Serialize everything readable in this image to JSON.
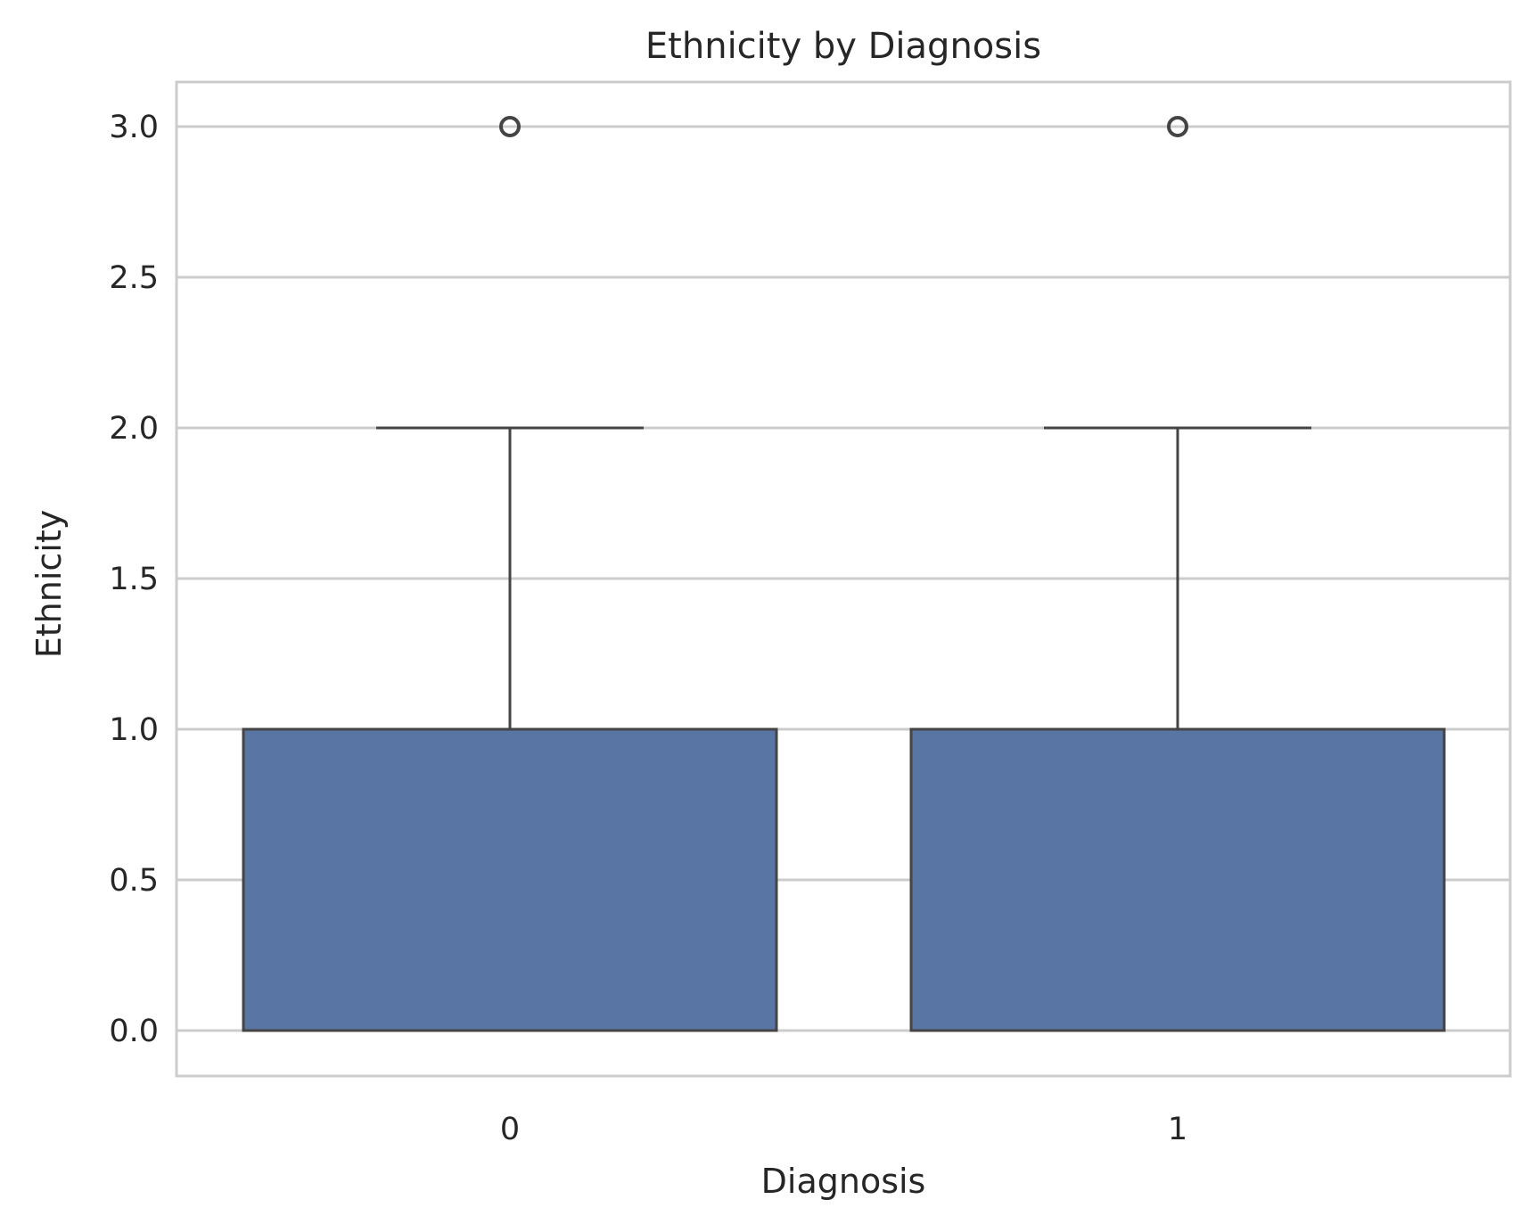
{
  "chart_data": {
    "type": "box",
    "title": "Ethnicity by Diagnosis",
    "xlabel": "Diagnosis",
    "ylabel": "Ethnicity",
    "categories": [
      "0",
      "1"
    ],
    "ylim": [
      -0.15,
      3.15
    ],
    "yticks": [
      0.0,
      0.5,
      1.0,
      1.5,
      2.0,
      2.5,
      3.0
    ],
    "ytick_labels": [
      "0.0",
      "0.5",
      "1.0",
      "1.5",
      "2.0",
      "2.5",
      "3.0"
    ],
    "grid": true,
    "box_color": "#5975a4",
    "boxes": [
      {
        "category": "0",
        "whisker_low": 0,
        "q1": 0,
        "median": 0,
        "q3": 1,
        "whisker_high": 2,
        "outliers": [
          3
        ]
      },
      {
        "category": "1",
        "whisker_low": 0,
        "q1": 0,
        "median": 0,
        "q3": 1,
        "whisker_high": 2,
        "outliers": [
          3
        ]
      }
    ]
  }
}
